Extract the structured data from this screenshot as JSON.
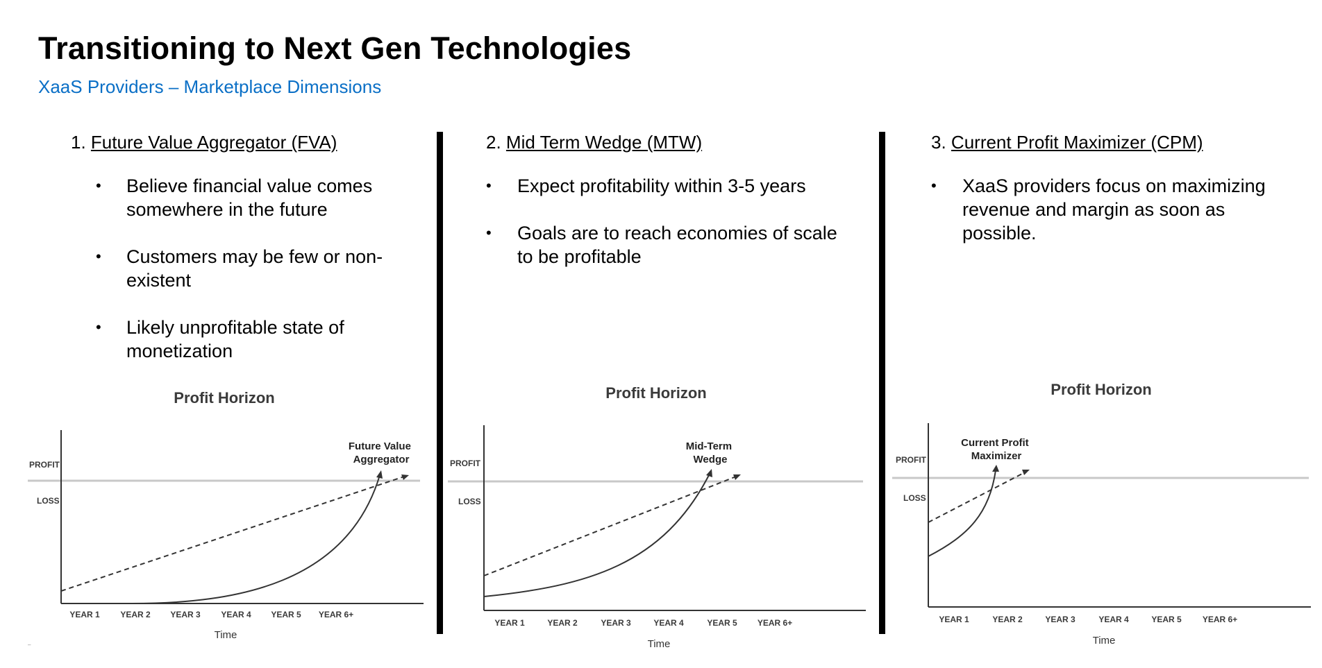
{
  "page": {
    "title": "Transitioning to Next Gen Technologies",
    "subtitle": "XaaS Providers – Marketplace Dimensions",
    "footnote": "–"
  },
  "colors": {
    "subtitle": "#0a6fc6",
    "divider": "#000000",
    "baseline": "#c8c8c8",
    "curve": "#333333"
  },
  "columns": [
    {
      "number": "1.",
      "title": "Future Value Aggregator (FVA)",
      "bullets": [
        "Believe financial value comes somewhere in the future",
        "Customers may be few or non-existent",
        "Likely unprofitable state of monetization"
      ]
    },
    {
      "number": "2.",
      "title": "Mid Term Wedge (MTW)",
      "bullets": [
        "Expect profitability within 3-5 years",
        "Goals are to reach economies of scale to be profitable"
      ]
    },
    {
      "number": "3.",
      "title": "Current Profit Maximizer (CPM)",
      "bullets": [
        "XaaS providers focus on maximizing revenue and margin as soon as possible."
      ]
    }
  ],
  "chart_data": [
    {
      "type": "line",
      "title": "Profit Horizon",
      "xlabel": "Time",
      "categories": [
        "YEAR 1",
        "YEAR 2",
        "YEAR 3",
        "YEAR 4",
        "YEAR 5",
        "YEAR 6+"
      ],
      "region_labels": [
        "PROFIT",
        "LOSS"
      ],
      "annotation": [
        "Future Value",
        "Aggregator"
      ],
      "break_even_year": 6.2
    },
    {
      "type": "line",
      "title": "Profit Horizon",
      "xlabel": "Time",
      "categories": [
        "YEAR 1",
        "YEAR 2",
        "YEAR 3",
        "YEAR 4",
        "YEAR 5",
        "YEAR 6+"
      ],
      "region_labels": [
        "PROFIT",
        "LOSS"
      ],
      "annotation": [
        "Mid-Term",
        "Wedge"
      ],
      "break_even_year": 4.8
    },
    {
      "type": "line",
      "title": "Profit Horizon",
      "xlabel": "Time",
      "categories": [
        "YEAR 1",
        "YEAR 2",
        "YEAR 3",
        "YEAR 4",
        "YEAR 5",
        "YEAR 6+"
      ],
      "region_labels": [
        "PROFIT",
        "LOSS"
      ],
      "annotation": [
        "Current Profit",
        "Maximizer"
      ],
      "break_even_year": 1.8
    }
  ]
}
